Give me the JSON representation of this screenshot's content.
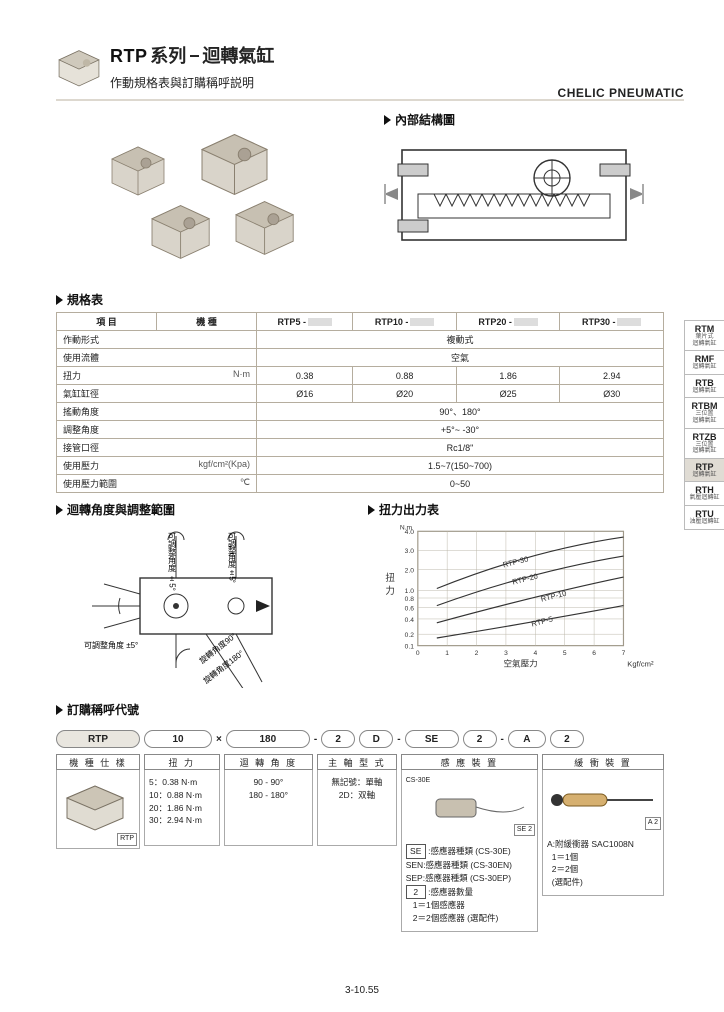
{
  "header": {
    "title_en": "RTP",
    "title_series": "系列",
    "title_dash": "−",
    "title_zh": "迴轉氣缸",
    "subtitle": "作動規格表與訂購稱呼説明",
    "brand": "CHELIC PNEUMATIC"
  },
  "struct_title": "內部結構圖",
  "spec_title": "規格表",
  "spec_head": {
    "c1": "項 目",
    "c2": "機 種",
    "m1": "RTP5 -",
    "m2": "RTP10 -",
    "m3": "RTP20 -",
    "m4": "RTP30 -"
  },
  "spec": [
    {
      "label": "作動形式",
      "unit": "",
      "span": "複動式"
    },
    {
      "label": "使用流體",
      "unit": "",
      "span": "空氣"
    },
    {
      "label": "扭力",
      "unit": "N·m",
      "vals": [
        "0.38",
        "0.88",
        "1.86",
        "2.94"
      ]
    },
    {
      "label": "氣缸缸徑",
      "unit": "",
      "vals": [
        "Ø16",
        "Ø20",
        "Ø25",
        "Ø30"
      ]
    },
    {
      "label": "搖動角度",
      "unit": "",
      "span": "90°、180°"
    },
    {
      "label": "調整角度",
      "unit": "",
      "span": "+5°~ -30°"
    },
    {
      "label": "接管口徑",
      "unit": "",
      "span": "Rc1/8\""
    },
    {
      "label": "使用壓力",
      "unit": "kgf/cm²(Kpa)",
      "span": "1.5~7(150~700)"
    },
    {
      "label": "使用壓力範圍",
      "unit": "℃",
      "span": "0~50"
    }
  ],
  "angle_title": "迴轉角度與調整範圍",
  "angle_labels": {
    "adj5a": "可調整角度 ±5°",
    "adj5b": "可調整角度 ±5°",
    "adj5c": "可調整角度 ±5°",
    "rot90": "旋轉角度90°",
    "rot180": "旋轉角度180°"
  },
  "torque_title": "扭力出力表",
  "torque_chart": {
    "y_label_1": "扭",
    "y_label_2": "力",
    "y_unit_top": "N.m",
    "y_ticks": [
      "4.0",
      "3.0",
      "2.0",
      "1.0",
      "0.8",
      "0.6",
      "0.4",
      "0.2",
      "0.1"
    ],
    "x_label": "空氣壓力",
    "x_unit": "Kgf/cm²",
    "x_ticks": [
      "0",
      "1",
      "2",
      "3",
      "4",
      "5",
      "6",
      "7"
    ],
    "lines": [
      "RTP-30",
      "RTP-20",
      "RTP-10",
      "RTP-5"
    ],
    "line_color": "#333333",
    "grid_color": "#bbb5a8",
    "frame_color": "#888070"
  },
  "order_title": "訂購稱呼代號",
  "order_codes": {
    "c1": "RTP",
    "c2": "10",
    "sep1": "×",
    "c3": "180",
    "d": "-",
    "c4": "2",
    "c5": "D",
    "c6": "SE",
    "c7": "2",
    "c8": "A",
    "c9": "2"
  },
  "order_heads": {
    "h1": "機 種 仕 樣",
    "h2": "扭 力",
    "h3": "迴 轉 角 度",
    "h4": "主 軸 型 式",
    "h5": "感 應 裝 置",
    "h6": "緩 衝 裝 置"
  },
  "order_body": {
    "col1_tag": "RTP",
    "col2": [
      "5：0.38 N·m",
      "10：0.88 N·m",
      "20：1.86 N·m",
      "30：2.94 N·m"
    ],
    "col3": [
      "90 - 90°",
      "180 - 180°"
    ],
    "col4": [
      "無記號：單軸",
      "2D：双軸"
    ],
    "col5a": "CS-30E",
    "col5_tag": "SE 2",
    "col5": [
      "SE :感應器種類 (CS-30E)",
      "SEN:感應器種類 (CS-30EN)",
      "SEP:感應器種類 (CS-30EP)",
      " 2 :感應器數量",
      "   1＝1個感應器",
      "   2＝2個感應器 (選配件)"
    ],
    "col6_tag": "A 2",
    "col6": [
      "A:附緩衝器 SAC1008N",
      "  1＝1個",
      "  2＝2個",
      "  (選配件)"
    ]
  },
  "tabs": [
    {
      "code": "RTM",
      "sub": "葉片式\n迴轉氣缸"
    },
    {
      "code": "RMF",
      "sub": "迴轉氣缸"
    },
    {
      "code": "RTB",
      "sub": "迴轉氣缸"
    },
    {
      "code": "RTBM",
      "sub": "三位置\n迴轉氣缸"
    },
    {
      "code": "RTZB",
      "sub": "三位置\n迴轉氣缸"
    },
    {
      "code": "RTP",
      "sub": "迴轉氣缸",
      "active": true
    },
    {
      "code": "RTH",
      "sub": "氣壓迴轉缸"
    },
    {
      "code": "RTU",
      "sub": "油壓迴轉缸"
    }
  ],
  "page_number": "3-10.55"
}
